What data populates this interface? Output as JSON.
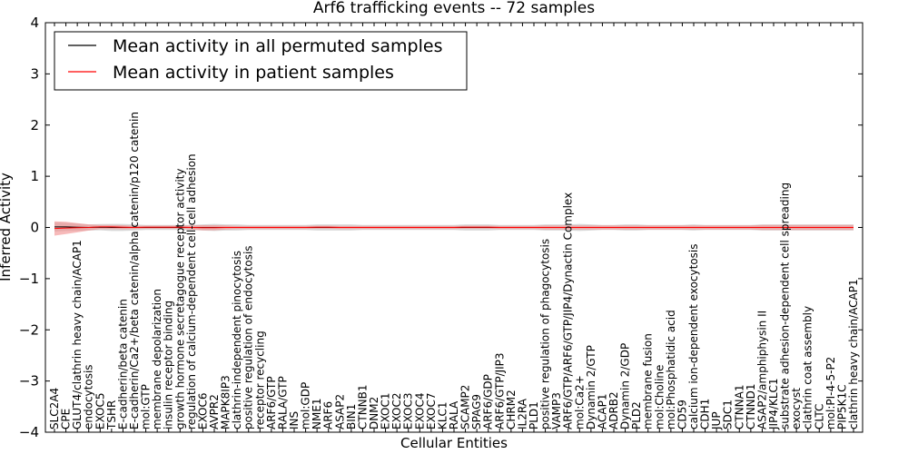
{
  "chart_data": {
    "type": "line",
    "title": "Arf6 trafficking events -- 72 samples",
    "xlabel": "Cellular Entities",
    "ylabel": "Inferred Activity",
    "ylim": [
      -4,
      4
    ],
    "yticks": [
      -4,
      -3,
      -2,
      -1,
      0,
      1,
      2,
      3,
      4
    ],
    "ytick_labels": [
      "−4",
      "−3",
      "−2",
      "−1",
      "0",
      "1",
      "2",
      "3",
      "4"
    ],
    "legend_position": "top-left",
    "categories": [
      "SLC2A4",
      "CPE",
      "GLUT4/clathrin heavy chain/ACAP1",
      "endocytosis",
      "EXOC5",
      "TSHR",
      "E-cadherin/beta catenin",
      "E-cadherin/Ca2+/beta catenin/alpha catenin/p120 catenin",
      "mol:GTP",
      "membrane depolarization",
      "insulin receptor binding",
      "growth hormone secretagogue receptor activity",
      "regulation of calcium-dependent cell-cell adhesion",
      "EXOC6",
      "AVPR2",
      "MAPK8IP3",
      "clathrin-independent pinocytosis",
      "positive regulation of endocytosis",
      "receptor recycling",
      "ARF6/GTP",
      "RALA/GTP",
      "INS",
      "mol:GDP",
      "NME1",
      "ARF6",
      "ASAP2",
      "BIN1",
      "CTNNB1",
      "DNM2",
      "EXOC1",
      "EXOC2",
      "EXOC3",
      "EXOC4",
      "EXOC7",
      "KLC1",
      "RALA",
      "SCAMP2",
      "SPAG9",
      "ARF6/GDP",
      "ARF6/GTP/JIP3",
      "CHRM2",
      "IL2RA",
      "PLD1",
      "positive regulation of phagocytosis",
      "VAMP3",
      "ARF6/GTP/ARF6/GTP/JIP4/Dynactin Complex",
      "mol:Ca2+",
      "Dynamin 2/GTP",
      "ACAP1",
      "ADRB2",
      "Dynamin 2/GDP",
      "PLD2",
      "membrane fusion",
      "mol:Choline",
      "mol:Phosphatidic acid",
      "CD59",
      "calcium ion-dependent exocytosis",
      "CDH1",
      "JUP",
      "SDC1",
      "CTNNA1",
      "CTNND1",
      "ASAP2/amphiphysin II",
      "JIP4/KLC1",
      "substrate adhesion-dependent cell spreading",
      "exocyst",
      "clathrin coat assembly",
      "CLTC",
      "mol:PI-4-5-P2",
      "PIP5K1C",
      "clathrin heavy chain/ACAP1"
    ],
    "series": [
      {
        "name": "Mean activity in all permuted samples",
        "color": "#000000",
        "band_color": "#b8b8b8",
        "values": [
          0.01,
          0.01,
          0.005,
          0,
          0.005,
          0,
          0,
          0,
          0,
          0,
          0,
          0,
          0,
          0,
          0,
          0,
          0,
          0,
          0,
          0,
          0,
          0,
          0,
          0,
          0,
          0,
          0,
          0,
          0,
          0,
          0,
          0,
          0,
          0,
          0,
          0,
          0,
          0,
          0,
          0,
          0,
          0,
          0,
          0,
          0,
          0,
          0,
          0,
          0,
          0,
          0,
          0,
          0,
          0,
          0,
          0,
          0,
          0,
          0,
          0,
          0,
          0,
          0,
          0,
          0,
          0,
          0,
          0,
          0,
          0,
          0
        ],
        "spread": [
          0.09,
          0.08,
          0.07,
          0.06,
          0.06,
          0.07,
          0.07,
          0.06,
          0.05,
          0.05,
          0.05,
          0.05,
          0.05,
          0.06,
          0.07,
          0.06,
          0.06,
          0.05,
          0.05,
          0.05,
          0.05,
          0.05,
          0.05,
          0.06,
          0.06,
          0.06,
          0.06,
          0.05,
          0.05,
          0.05,
          0.05,
          0.05,
          0.05,
          0.05,
          0.05,
          0.05,
          0.06,
          0.06,
          0.06,
          0.05,
          0.05,
          0.05,
          0.05,
          0.06,
          0.06,
          0.06,
          0.07,
          0.06,
          0.05,
          0.05,
          0.06,
          0.06,
          0.05,
          0.05,
          0.05,
          0.05,
          0.06,
          0.05,
          0.05,
          0.05,
          0.05,
          0.05,
          0.06,
          0.06,
          0.06,
          0.06,
          0.06,
          0.06,
          0.06,
          0.06,
          0.06
        ]
      },
      {
        "name": "Mean activity in patient samples",
        "color": "#ff0000",
        "band_color": "#f28c8c",
        "values": [
          -0.02,
          -0.01,
          -0.005,
          0,
          0.01,
          0.01,
          0.005,
          0,
          0.005,
          0.005,
          0.005,
          0.005,
          0,
          -0.005,
          -0.005,
          0,
          0,
          0,
          0,
          0,
          0,
          0,
          0,
          0.005,
          0.005,
          0,
          0,
          0,
          0,
          0,
          0,
          0,
          0,
          0,
          0,
          0,
          0.005,
          0.005,
          0.005,
          0,
          0,
          0,
          0,
          0,
          0,
          0,
          0,
          0,
          0,
          0,
          0,
          0,
          0,
          0,
          0,
          0,
          0,
          0,
          0,
          0,
          0,
          0,
          0,
          0,
          0,
          0,
          0,
          0,
          0,
          0,
          0
        ],
        "spread": [
          0.14,
          0.12,
          0.09,
          0.06,
          0.04,
          0.04,
          0.04,
          0.03,
          0.03,
          0.03,
          0.03,
          0.03,
          0.04,
          0.05,
          0.05,
          0.04,
          0.03,
          0.03,
          0.03,
          0.03,
          0.03,
          0.03,
          0.03,
          0.03,
          0.03,
          0.03,
          0.03,
          0.03,
          0.03,
          0.03,
          0.03,
          0.03,
          0.03,
          0.03,
          0.03,
          0.03,
          0.03,
          0.03,
          0.03,
          0.03,
          0.03,
          0.03,
          0.03,
          0.04,
          0.04,
          0.04,
          0.04,
          0.04,
          0.04,
          0.04,
          0.04,
          0.04,
          0.04,
          0.04,
          0.04,
          0.04,
          0.04,
          0.04,
          0.04,
          0.04,
          0.04,
          0.04,
          0.05,
          0.05,
          0.05,
          0.05,
          0.05,
          0.05,
          0.05,
          0.05,
          0.05
        ]
      }
    ]
  }
}
